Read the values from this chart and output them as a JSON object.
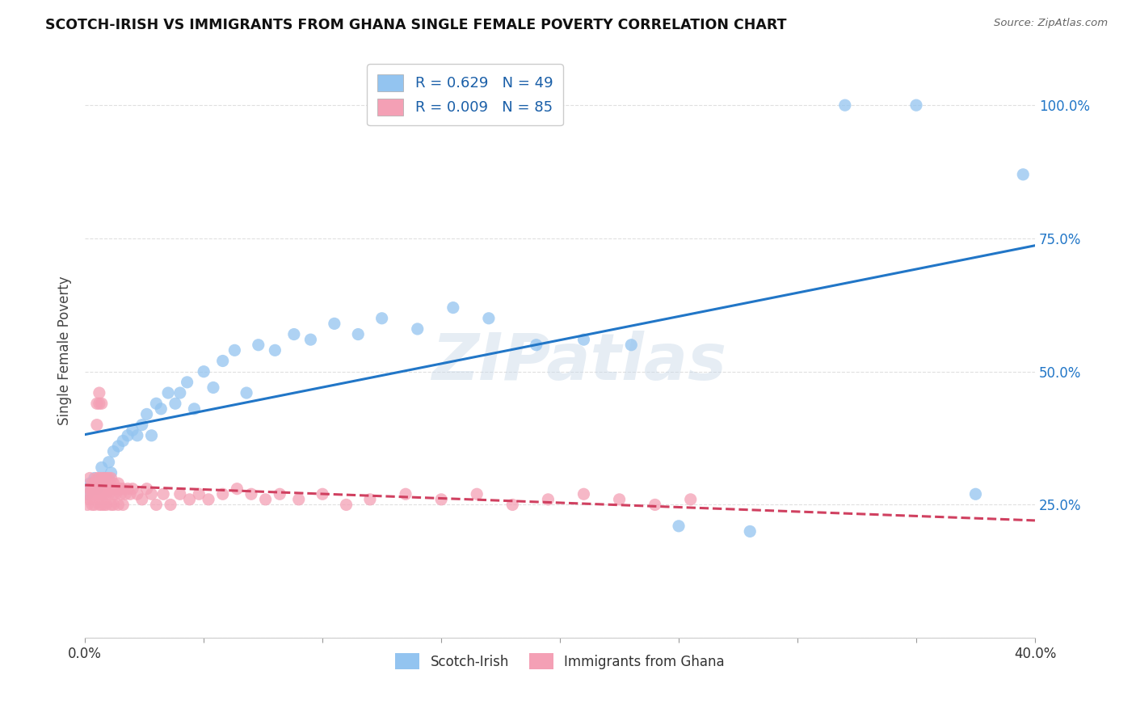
{
  "title": "SCOTCH-IRISH VS IMMIGRANTS FROM GHANA SINGLE FEMALE POVERTY CORRELATION CHART",
  "source": "Source: ZipAtlas.com",
  "ylabel": "Single Female Poverty",
  "x_min": 0.0,
  "x_max": 0.4,
  "y_min": 0.0,
  "y_max": 1.08,
  "watermark": "ZIPatlas",
  "series": [
    {
      "name": "Scotch-Irish",
      "R": 0.629,
      "N": 49,
      "color": "#93c4f0",
      "trend_color": "#2176c7",
      "trend_style": "solid",
      "x": [
        0.001,
        0.002,
        0.003,
        0.004,
        0.005,
        0.007,
        0.008,
        0.01,
        0.011,
        0.012,
        0.014,
        0.016,
        0.018,
        0.02,
        0.022,
        0.024,
        0.026,
        0.028,
        0.03,
        0.032,
        0.035,
        0.038,
        0.04,
        0.043,
        0.046,
        0.05,
        0.054,
        0.058,
        0.063,
        0.068,
        0.073,
        0.08,
        0.088,
        0.095,
        0.105,
        0.115,
        0.125,
        0.14,
        0.155,
        0.17,
        0.19,
        0.21,
        0.23,
        0.25,
        0.28,
        0.32,
        0.35,
        0.375,
        0.395
      ],
      "y": [
        0.27,
        0.29,
        0.28,
        0.3,
        0.28,
        0.32,
        0.3,
        0.33,
        0.31,
        0.35,
        0.36,
        0.37,
        0.38,
        0.39,
        0.38,
        0.4,
        0.42,
        0.38,
        0.44,
        0.43,
        0.46,
        0.44,
        0.46,
        0.48,
        0.43,
        0.5,
        0.47,
        0.52,
        0.54,
        0.46,
        0.55,
        0.54,
        0.57,
        0.56,
        0.59,
        0.57,
        0.6,
        0.58,
        0.62,
        0.6,
        0.55,
        0.56,
        0.55,
        0.21,
        0.2,
        1.0,
        1.0,
        0.27,
        0.87
      ]
    },
    {
      "name": "Immigrants from Ghana",
      "R": 0.009,
      "N": 85,
      "color": "#f4a0b5",
      "trend_color": "#d04060",
      "trend_style": "dashed",
      "x": [
        0.001,
        0.001,
        0.002,
        0.002,
        0.002,
        0.003,
        0.003,
        0.003,
        0.003,
        0.004,
        0.004,
        0.004,
        0.004,
        0.005,
        0.005,
        0.005,
        0.005,
        0.006,
        0.006,
        0.006,
        0.006,
        0.006,
        0.007,
        0.007,
        0.007,
        0.007,
        0.007,
        0.008,
        0.008,
        0.008,
        0.008,
        0.009,
        0.009,
        0.009,
        0.009,
        0.01,
        0.01,
        0.01,
        0.011,
        0.011,
        0.011,
        0.012,
        0.012,
        0.012,
        0.013,
        0.013,
        0.014,
        0.014,
        0.015,
        0.015,
        0.016,
        0.016,
        0.017,
        0.018,
        0.019,
        0.02,
        0.022,
        0.024,
        0.026,
        0.028,
        0.03,
        0.033,
        0.036,
        0.04,
        0.044,
        0.048,
        0.052,
        0.058,
        0.064,
        0.07,
        0.076,
        0.082,
        0.09,
        0.1,
        0.11,
        0.12,
        0.135,
        0.15,
        0.165,
        0.18,
        0.195,
        0.21,
        0.225,
        0.24,
        0.255
      ],
      "y": [
        0.27,
        0.25,
        0.28,
        0.3,
        0.26,
        0.27,
        0.29,
        0.25,
        0.28,
        0.27,
        0.29,
        0.25,
        0.28,
        0.44,
        0.4,
        0.27,
        0.3,
        0.44,
        0.46,
        0.27,
        0.3,
        0.25,
        0.28,
        0.44,
        0.27,
        0.3,
        0.25,
        0.27,
        0.29,
        0.3,
        0.25,
        0.28,
        0.3,
        0.27,
        0.25,
        0.28,
        0.3,
        0.27,
        0.28,
        0.3,
        0.25,
        0.27,
        0.29,
        0.25,
        0.28,
        0.27,
        0.29,
        0.25,
        0.27,
        0.28,
        0.28,
        0.25,
        0.27,
        0.28,
        0.27,
        0.28,
        0.27,
        0.26,
        0.28,
        0.27,
        0.25,
        0.27,
        0.25,
        0.27,
        0.26,
        0.27,
        0.26,
        0.27,
        0.28,
        0.27,
        0.26,
        0.27,
        0.26,
        0.27,
        0.25,
        0.26,
        0.27,
        0.26,
        0.27,
        0.25,
        0.26,
        0.27,
        0.26,
        0.25,
        0.26
      ]
    }
  ],
  "background_color": "#ffffff",
  "grid_color": "#e0e0e0"
}
